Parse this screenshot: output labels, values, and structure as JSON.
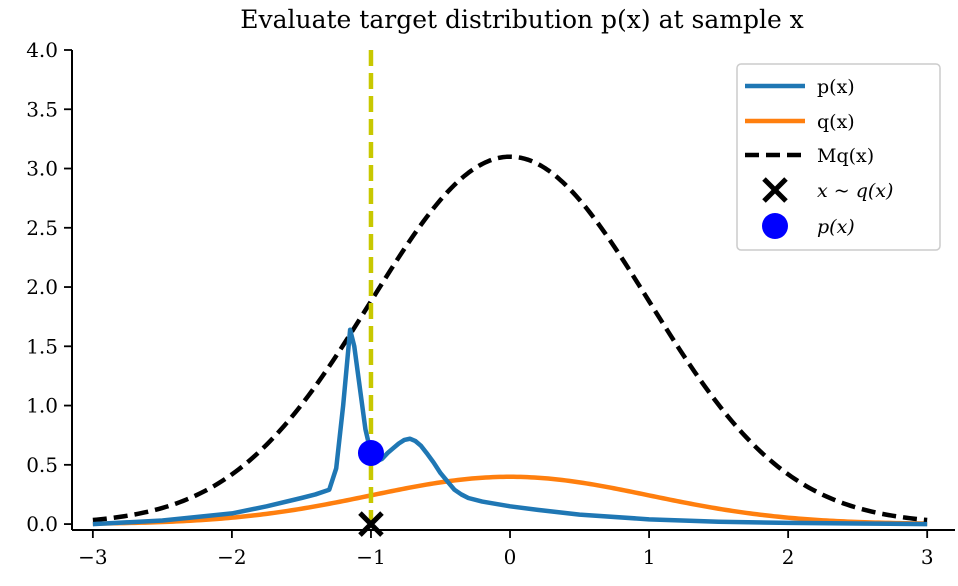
{
  "chart_data": {
    "type": "line",
    "title": "Evaluate target distribution p(x) at sample x",
    "xlabel": "",
    "ylabel": "",
    "xlim": [
      -3.15,
      3.2
    ],
    "ylim": [
      -0.05,
      4.0
    ],
    "x_ticks": [
      -3,
      -2,
      -1,
      0,
      1,
      2,
      3
    ],
    "x_tick_labels": [
      "−3",
      "−2",
      "−1",
      "0",
      "1",
      "2",
      "3"
    ],
    "y_ticks": [
      0.0,
      0.5,
      1.0,
      1.5,
      2.0,
      2.5,
      3.0,
      3.5,
      4.0
    ],
    "y_tick_labels": [
      "0.0",
      "0.5",
      "1.0",
      "1.5",
      "2.0",
      "2.5",
      "3.0",
      "3.5",
      "4.0"
    ],
    "grid": false,
    "legend_position": "top-right",
    "series": [
      {
        "name": "p(x)",
        "color": "#1f77b4",
        "style": "solid",
        "x": [
          -3.0,
          -2.5,
          -2.0,
          -1.75,
          -1.5,
          -1.4,
          -1.3,
          -1.25,
          -1.2,
          -1.15,
          -1.12,
          -1.08,
          -1.04,
          -1.0,
          -0.96,
          -0.92,
          -0.88,
          -0.84,
          -0.8,
          -0.76,
          -0.72,
          -0.68,
          -0.64,
          -0.6,
          -0.55,
          -0.5,
          -0.45,
          -0.4,
          -0.35,
          -0.3,
          -0.2,
          -0.1,
          0.0,
          0.2,
          0.5,
          1.0,
          1.5,
          2.0,
          2.5,
          3.0
        ],
        "y": [
          0.0,
          0.03,
          0.09,
          0.15,
          0.22,
          0.25,
          0.29,
          0.47,
          1.0,
          1.64,
          1.5,
          1.15,
          0.8,
          0.6,
          0.53,
          0.55,
          0.6,
          0.64,
          0.68,
          0.71,
          0.72,
          0.7,
          0.66,
          0.6,
          0.52,
          0.43,
          0.36,
          0.29,
          0.25,
          0.22,
          0.19,
          0.17,
          0.15,
          0.12,
          0.08,
          0.04,
          0.02,
          0.01,
          0.005,
          0.0
        ]
      },
      {
        "name": "q(x)",
        "color": "#ff7f0e",
        "style": "solid",
        "function": "normal_pdf",
        "mu": 0.0,
        "sigma": 1.0,
        "scale": 1.0,
        "x_range": [
          -3,
          3
        ]
      },
      {
        "name": "Mq(x)",
        "color": "#000000",
        "style": "dashed",
        "function": "normal_pdf",
        "mu": 0.0,
        "sigma": 1.0,
        "scale": 7.77,
        "x_range": [
          -3,
          3
        ]
      }
    ],
    "vertical_line": {
      "x": -1.0,
      "color": "#c8c800",
      "style": "dashed"
    },
    "markers": [
      {
        "name": "x ~ q(x)",
        "x": -1.0,
        "y": 0.0,
        "shape": "x",
        "color": "#000000"
      },
      {
        "name": "p(x)",
        "x": -1.0,
        "y": 0.6,
        "shape": "circle",
        "color": "#0000ff"
      }
    ]
  }
}
